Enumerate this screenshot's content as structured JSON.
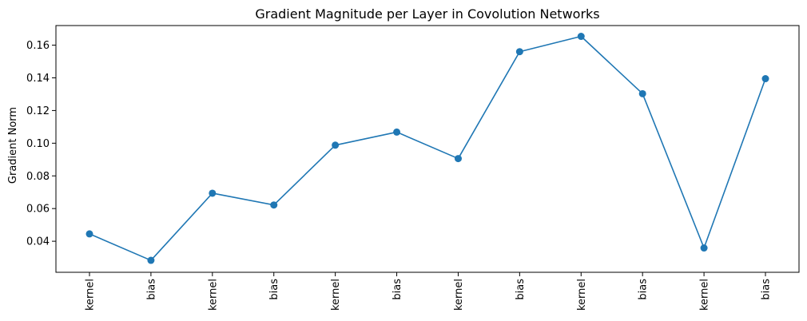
{
  "chart_data": {
    "type": "line",
    "title": "Gradient Magnitude per Layer in Covolution Networks",
    "xlabel": "",
    "ylabel": "Gradient Norm",
    "categories": [
      "kernel",
      "bias",
      "kernel",
      "bias",
      "kernel",
      "bias",
      "kernel",
      "bias",
      "kernel",
      "bias",
      "kernel",
      "bias"
    ],
    "series": [
      {
        "values": [
          0.0445,
          0.0283,
          0.0694,
          0.0622,
          0.0988,
          0.1068,
          0.0906,
          0.156,
          0.1654,
          0.1303,
          0.0359,
          0.1395
        ],
        "color": "#1f77b4",
        "marker": "circle"
      }
    ],
    "yticks": [
      0.04,
      0.06,
      0.08,
      0.1,
      0.12,
      0.14,
      0.16
    ],
    "ytick_labels": [
      "0.04",
      "0.06",
      "0.08",
      "0.10",
      "0.12",
      "0.14",
      "0.16"
    ],
    "ylim": [
      0.021,
      0.172
    ],
    "grid": false,
    "legend": "none"
  }
}
